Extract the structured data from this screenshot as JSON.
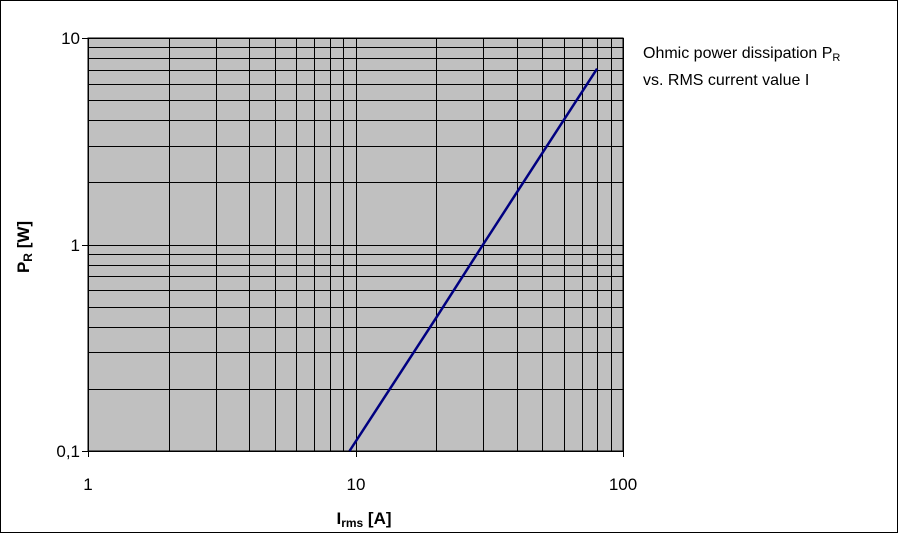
{
  "chart_data": {
    "type": "line",
    "xscale": "log",
    "yscale": "log",
    "xlim": [
      1,
      100
    ],
    "ylim": [
      0.1,
      10
    ],
    "grid": true,
    "x_ticks": [
      "1",
      "10",
      "100"
    ],
    "y_ticks": [
      "0,1",
      "1",
      "10"
    ],
    "xlabel": {
      "main": "I",
      "sub": "rms",
      "rest": " [A]"
    },
    "ylabel": {
      "main": "P",
      "sub": "R",
      "rest": " [W]"
    },
    "legend": {
      "placement": "top-right",
      "line1": {
        "main": "Ohmic power dissipation P",
        "sub": "R"
      },
      "line2": "vs. RMS current value I"
    },
    "series": [
      {
        "color": "#000080",
        "x": [
          9.5,
          20,
          30,
          50,
          80
        ],
        "y": [
          0.1,
          0.44,
          1.0,
          2.78,
          7.1
        ]
      }
    ]
  }
}
